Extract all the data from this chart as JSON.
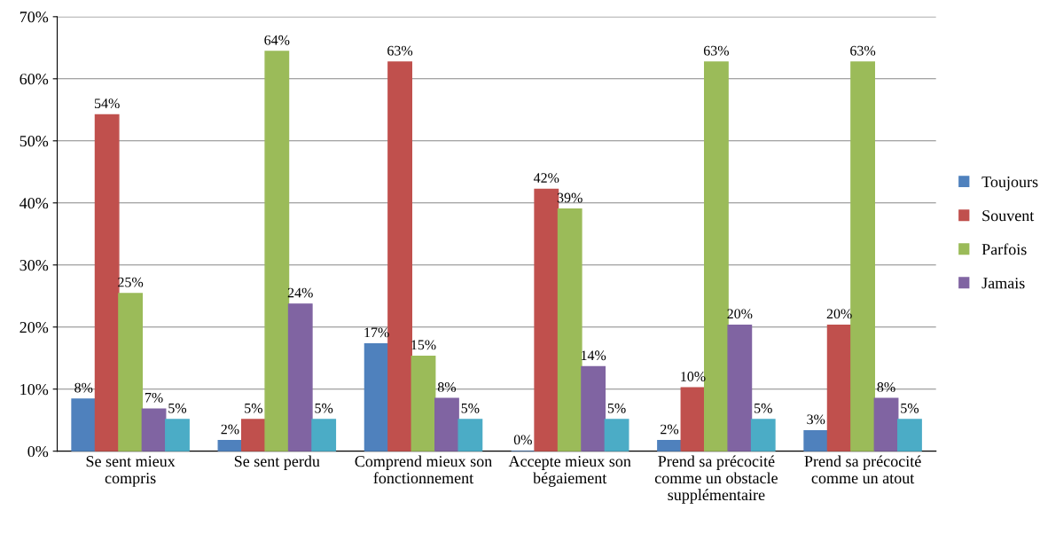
{
  "chart_data": {
    "type": "bar",
    "categories": [
      "Se sent mieux compris",
      "Se sent perdu",
      "Comprend mieux son fonctionnement",
      "Accepte mieux son bégaiement",
      "Prend sa précocité comme un obstacle supplémentaire",
      "Prend sa précocité comme un atout"
    ],
    "series": [
      {
        "name": "Toujours",
        "color": "#4f81bd",
        "values": [
          8.4,
          1.7,
          17.3,
          0,
          1.7,
          3.3
        ],
        "value_labels": [
          "8%",
          "2%",
          "17%",
          "0%",
          "2%",
          "3%"
        ]
      },
      {
        "name": "Souvent",
        "color": "#c0504d",
        "values": [
          54.2,
          5.1,
          62.7,
          42.2,
          10.2,
          20.3
        ],
        "value_labels": [
          "54%",
          "5%",
          "63%",
          "42%",
          "10%",
          "20%"
        ]
      },
      {
        "name": "Parfois",
        "color": "#9bbb59",
        "values": [
          25.4,
          64.4,
          15.3,
          39.0,
          62.7,
          62.7
        ],
        "value_labels": [
          "25%",
          "64%",
          "15%",
          "39%",
          "63%",
          "63%"
        ]
      },
      {
        "name": "Jamais",
        "color": "#8064a2",
        "values": [
          6.8,
          23.7,
          8.5,
          13.6,
          20.3,
          8.5
        ],
        "value_labels": [
          "7%",
          "24%",
          "8%",
          "14%",
          "20%",
          "8%"
        ]
      },
      {
        "color": "#4bacc6",
        "values": [
          5.1,
          5.1,
          5.1,
          5.1,
          5.1,
          5.1
        ],
        "value_labels": [
          "5%",
          "5%",
          "5%",
          "5%",
          "5%",
          "5%"
        ]
      }
    ],
    "ylim": [
      0,
      70
    ],
    "yticks": [
      {
        "value": 0,
        "label": "0%"
      },
      {
        "value": 10,
        "label": "10%"
      },
      {
        "value": 20,
        "label": "20%"
      },
      {
        "value": 30,
        "label": "30%"
      },
      {
        "value": 40,
        "label": "40%"
      },
      {
        "value": 50,
        "label": "50%"
      },
      {
        "value": 60,
        "label": "60%"
      },
      {
        "value": 70,
        "label": "70%"
      }
    ],
    "grid": "y",
    "legend": "right"
  }
}
